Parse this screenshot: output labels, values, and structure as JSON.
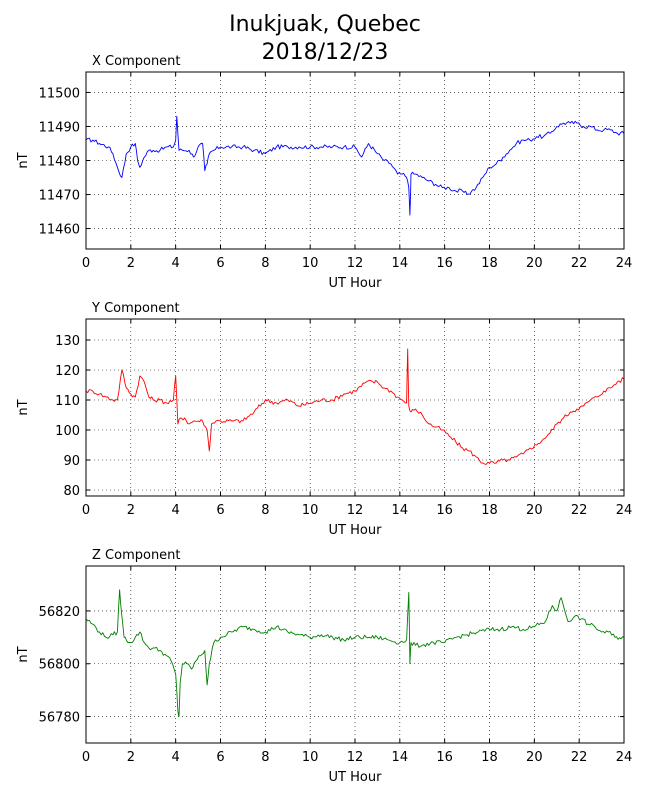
{
  "figure": {
    "title_line1": "Inukjuak, Quebec",
    "title_line2": "2018/12/23"
  },
  "chart_data": [
    {
      "type": "line",
      "title": "X Component",
      "xlabel": "UT Hour",
      "ylabel": "nT",
      "xlim": [
        0,
        24
      ],
      "ylim": [
        11454,
        11506
      ],
      "xticks": [
        "0",
        "2",
        "4",
        "6",
        "8",
        "10",
        "12",
        "14",
        "16",
        "18",
        "20",
        "22",
        "24"
      ],
      "yticks": [
        "11460",
        "11470",
        "11480",
        "11490",
        "11500"
      ],
      "ytick_values": [
        11460,
        11470,
        11480,
        11490,
        11500
      ],
      "grid": true,
      "color": "#0000ff",
      "series": [
        {
          "x": [
            0,
            0.3,
            0.6,
            1.0,
            1.2,
            1.4,
            1.6,
            1.8,
            2.0,
            2.2,
            2.3,
            2.4,
            2.6,
            2.8,
            3.0,
            3.3,
            3.6,
            3.9,
            4.0,
            4.05,
            4.15,
            4.3,
            4.6,
            4.8,
            5.0,
            5.2,
            5.3,
            5.4,
            5.5,
            5.7,
            6.0,
            6.5,
            7.0,
            7.5,
            8.0,
            8.5,
            9.0,
            9.5,
            10.0,
            10.5,
            11.0,
            11.5,
            12.0,
            12.3,
            12.6,
            13.0,
            13.3,
            13.6,
            13.9,
            14.1,
            14.3,
            14.4,
            14.45,
            14.5,
            14.7,
            15.0,
            15.3,
            15.6,
            15.9,
            16.2,
            16.5,
            16.8,
            17.0,
            17.2,
            17.4,
            17.7,
            18.0,
            18.3,
            18.6,
            18.9,
            19.2,
            19.5,
            19.8,
            20.1,
            20.4,
            20.7,
            21.0,
            21.3,
            21.6,
            21.9,
            22.2,
            22.5,
            22.8,
            23.1,
            23.4,
            23.7,
            24.0
          ],
          "y": [
            11486,
            11486,
            11485,
            11484,
            11482,
            11478,
            11475,
            11482,
            11484,
            11485,
            11480,
            11478,
            11481,
            11483,
            11483,
            11483,
            11484,
            11484,
            11486,
            11493,
            11483,
            11483,
            11483,
            11481,
            11484,
            11485,
            11477,
            11479,
            11482,
            11483,
            11484,
            11484,
            11484,
            11483,
            11482,
            11484,
            11484,
            11484,
            11484,
            11484,
            11484,
            11484,
            11484,
            11481,
            11485,
            11482,
            11480,
            11479,
            11476,
            11476,
            11475,
            11472,
            11464,
            11476,
            11476,
            11475,
            11474,
            11473,
            11472,
            11472,
            11471,
            11471,
            11470,
            11471,
            11472,
            11475,
            11478,
            11479,
            11481,
            11483,
            11485,
            11486,
            11486,
            11487,
            11487,
            11488,
            11490,
            11491,
            11491,
            11491,
            11490,
            11490,
            11489,
            11489,
            11489,
            11488,
            11488
          ]
        }
      ]
    },
    {
      "type": "line",
      "title": "Y Component",
      "xlabel": "UT Hour",
      "ylabel": "nT",
      "xlim": [
        0,
        24
      ],
      "ylim": [
        78,
        137
      ],
      "xticks": [
        "0",
        "2",
        "4",
        "6",
        "8",
        "10",
        "12",
        "14",
        "16",
        "18",
        "20",
        "22",
        "24"
      ],
      "yticks": [
        "80",
        "90",
        "100",
        "110",
        "120",
        "130"
      ],
      "ytick_values": [
        80,
        90,
        100,
        110,
        120,
        130
      ],
      "grid": true,
      "color": "#ff0000",
      "series": [
        {
          "x": [
            0,
            0.3,
            0.6,
            0.9,
            1.2,
            1.4,
            1.6,
            1.8,
            2.0,
            2.2,
            2.4,
            2.6,
            2.8,
            3.0,
            3.3,
            3.6,
            3.9,
            4.0,
            4.1,
            4.2,
            4.4,
            4.6,
            4.8,
            5.0,
            5.2,
            5.4,
            5.5,
            5.6,
            5.8,
            6.0,
            6.5,
            7.0,
            7.5,
            8.0,
            8.5,
            9.0,
            9.5,
            10.0,
            10.5,
            11.0,
            11.5,
            12.0,
            12.5,
            13.0,
            13.3,
            13.6,
            13.9,
            14.1,
            14.3,
            14.35,
            14.4,
            14.5,
            14.7,
            15.0,
            15.3,
            15.6,
            15.9,
            16.2,
            16.5,
            16.8,
            17.1,
            17.4,
            17.7,
            18.0,
            18.3,
            18.6,
            18.9,
            19.2,
            19.5,
            19.8,
            20.1,
            20.4,
            20.7,
            21.0,
            21.3,
            21.6,
            21.9,
            22.2,
            22.5,
            22.8,
            23.1,
            23.4,
            23.7,
            24.0
          ],
          "y": [
            113,
            113,
            112,
            111,
            110,
            110,
            120,
            114,
            112,
            111,
            118,
            116,
            111,
            110,
            110,
            109,
            110,
            118,
            102,
            104,
            104,
            102,
            103,
            103,
            103,
            100,
            93,
            102,
            103,
            103,
            103,
            103,
            106,
            110,
            109,
            110,
            108,
            109,
            110,
            110,
            112,
            113,
            116,
            116,
            114,
            113,
            111,
            110,
            109,
            127,
            108,
            106,
            107,
            105,
            102,
            101,
            100,
            98,
            96,
            94,
            93,
            91,
            89,
            89,
            89,
            90,
            90,
            91,
            92,
            94,
            95,
            97,
            99,
            102,
            104,
            106,
            107,
            108,
            110,
            111,
            113,
            114,
            116,
            117
          ]
        }
      ]
    },
    {
      "type": "line",
      "title": "Z Component",
      "xlabel": "UT Hour",
      "ylabel": "nT",
      "xlim": [
        0,
        24
      ],
      "ylim": [
        56770,
        56837
      ],
      "xticks": [
        "0",
        "2",
        "4",
        "6",
        "8",
        "10",
        "12",
        "14",
        "16",
        "18",
        "20",
        "22",
        "24"
      ],
      "yticks": [
        "56780",
        "56800",
        "56820"
      ],
      "ytick_values": [
        56780,
        56800,
        56820
      ],
      "grid": true,
      "color": "#007f00",
      "series": [
        {
          "x": [
            0,
            0.3,
            0.6,
            0.9,
            1.2,
            1.4,
            1.5,
            1.6,
            1.7,
            1.8,
            2.0,
            2.2,
            2.4,
            2.6,
            2.8,
            3.0,
            3.3,
            3.6,
            3.8,
            4.0,
            4.1,
            4.15,
            4.2,
            4.3,
            4.5,
            4.7,
            4.9,
            5.1,
            5.3,
            5.4,
            5.5,
            5.7,
            6.0,
            6.5,
            7.0,
            7.5,
            8.0,
            8.5,
            9.0,
            9.5,
            10.0,
            10.5,
            11.0,
            11.5,
            12.0,
            12.5,
            13.0,
            13.5,
            14.0,
            14.3,
            14.4,
            14.45,
            14.5,
            14.7,
            15.0,
            15.5,
            16.0,
            16.5,
            17.0,
            17.5,
            18.0,
            18.5,
            19.0,
            19.5,
            20.0,
            20.5,
            20.8,
            21.0,
            21.2,
            21.5,
            21.8,
            22.1,
            22.4,
            22.7,
            23.0,
            23.3,
            23.6,
            24.0
          ],
          "y": [
            56817,
            56815,
            56812,
            56810,
            56811,
            56812,
            56828,
            56818,
            56810,
            56809,
            56808,
            56810,
            56812,
            56808,
            56806,
            56806,
            56805,
            56803,
            56801,
            56796,
            56782,
            56780,
            56793,
            56800,
            56800,
            56798,
            56801,
            56803,
            56805,
            56792,
            56800,
            56808,
            56810,
            56812,
            56814,
            56813,
            56812,
            56814,
            56812,
            56811,
            56810,
            56811,
            56810,
            56809,
            56810,
            56810,
            56810,
            56809,
            56808,
            56809,
            56827,
            56800,
            56808,
            56807,
            56807,
            56808,
            56808,
            56810,
            56811,
            56812,
            56813,
            56813,
            56814,
            56813,
            56814,
            56816,
            56822,
            56820,
            56825,
            56816,
            56818,
            56817,
            56815,
            56814,
            56812,
            56812,
            56810,
            56810
          ]
        }
      ]
    }
  ]
}
